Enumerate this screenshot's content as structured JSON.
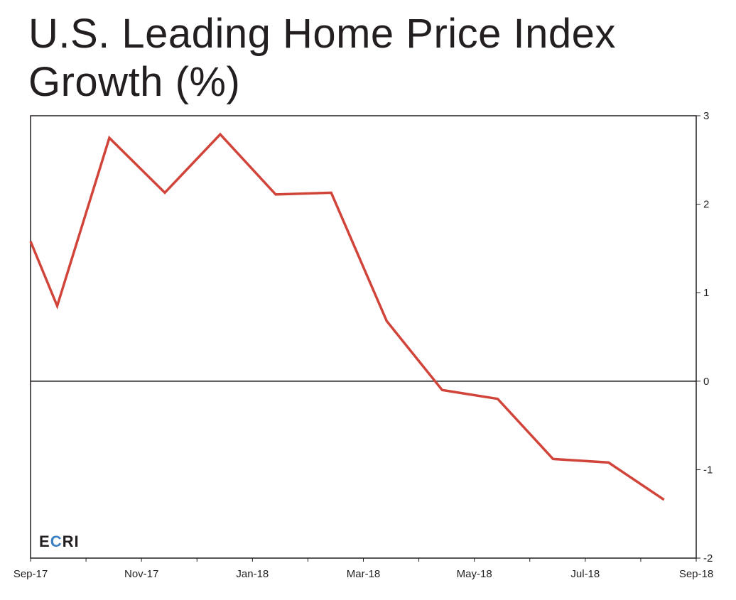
{
  "title": {
    "line1": "U.S. Leading Home Price Index",
    "line2_main": "Growth",
    "line2_unit": "(%)"
  },
  "logo": {
    "letters": [
      "E",
      "C",
      "R",
      "I"
    ],
    "colors": [
      "#231f20",
      "#3a7fc1",
      "#231f20",
      "#231f20"
    ]
  },
  "colors": {
    "line": "#d0443a",
    "axis": "#231f20",
    "zero_line": "#231f20"
  },
  "chart_data": {
    "type": "line",
    "title": "U.S. Leading Home Price Index Growth (%)",
    "xlabel": "",
    "ylabel": "",
    "x_start": "Sep-17",
    "x_end": "Sep-18",
    "x_tick_labels": [
      "Sep-17",
      "Nov-17",
      "Jan-18",
      "Mar-18",
      "May-18",
      "Jul-18",
      "Sep-18"
    ],
    "ylim": [
      -2,
      3
    ],
    "y_ticks": [
      3,
      2,
      1,
      0,
      -1,
      -2
    ],
    "y_axis_side": "right",
    "grid": false,
    "zero_line": true,
    "x": [
      "Sep-17",
      "Sep-17",
      "Oct-17",
      "Nov-17",
      "Dec-17",
      "Jan-18",
      "Feb-18",
      "Mar-18",
      "Apr-18",
      "May-18",
      "Jun-18",
      "Jul-18",
      "Aug-18"
    ],
    "series": [
      {
        "values": [
          1.58,
          0.85,
          2.75,
          2.13,
          2.79,
          2.11,
          2.13,
          0.68,
          -0.1,
          -0.2,
          -0.88,
          -0.92,
          -1.34
        ]
      }
    ]
  }
}
